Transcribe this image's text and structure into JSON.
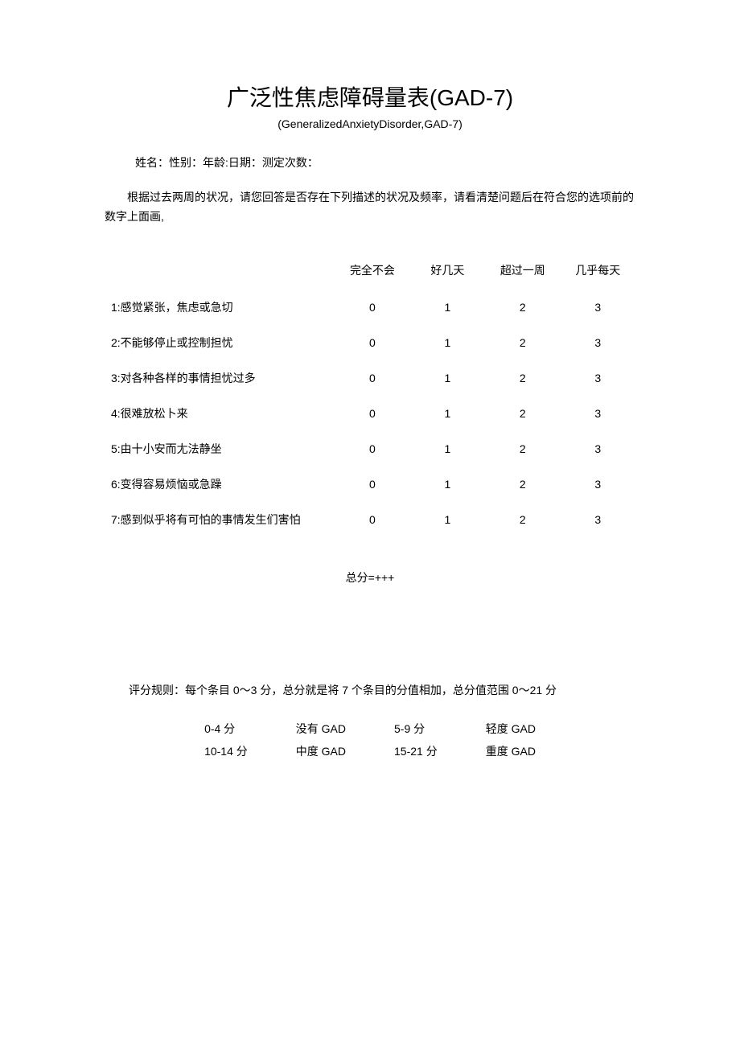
{
  "title": "广泛性焦虑障碍量表(GAD-7)",
  "subtitle": "(GeneralizedAnxietyDisorder,GAD-7)",
  "info_line": "姓名：性别：年龄:日期：测定次数：",
  "instructions": "根据过去两周的状况，请您回答是否存在下列描述的状况及频率，请看清楚问题后在符合您的选项前的数字上面画,",
  "headers": {
    "blank": "",
    "c0": "完全不会",
    "c1": "好几天",
    "c2": "超过一周",
    "c3": "几乎每天"
  },
  "questions": [
    {
      "text": "1:感觉紧张，焦虑或急切",
      "v0": "0",
      "v1": "1",
      "v2": "2",
      "v3": "3"
    },
    {
      "text": "2:不能够停止或控制担忧",
      "v0": "0",
      "v1": "1",
      "v2": "2",
      "v3": "3"
    },
    {
      "text": "3:对各种各样的事情担忧过多",
      "v0": "0",
      "v1": "1",
      "v2": "2",
      "v3": "3"
    },
    {
      "text": "4:很难放松卜来",
      "v0": "0",
      "v1": "1",
      "v2": "2",
      "v3": "3"
    },
    {
      "text": "5:由十小安而尢法静坐",
      "v0": "0",
      "v1": "1",
      "v2": "2",
      "v3": "3"
    },
    {
      "text": "6:变得容易烦恼或急躁",
      "v0": "0",
      "v1": "1",
      "v2": "2",
      "v3": "3"
    },
    {
      "text": "7:感到似乎将有可怕的事情发生们害怕",
      "v0": "0",
      "v1": "1",
      "v2": "2",
      "v3": "3"
    }
  ],
  "total": "总分=+++",
  "scoring_rule": "评分规则：每个条目 0～3 分，总分就是将 7 个条目的分值相加，总分值范围 0～21 分",
  "score_ranges": [
    {
      "range": "0-4 分",
      "label": "没有 GAD"
    },
    {
      "range": "5-9 分",
      "label": "轻度 GAD"
    },
    {
      "range": "10-14 分",
      "label": "中度 GAD"
    },
    {
      "range": "15-21 分",
      "label": "重度 GAD"
    }
  ],
  "colors": {
    "text": "#000000",
    "background": "#ffffff"
  },
  "typography": {
    "title_fontsize": 28,
    "body_fontsize": 14,
    "subtitle_fontsize": 14
  }
}
